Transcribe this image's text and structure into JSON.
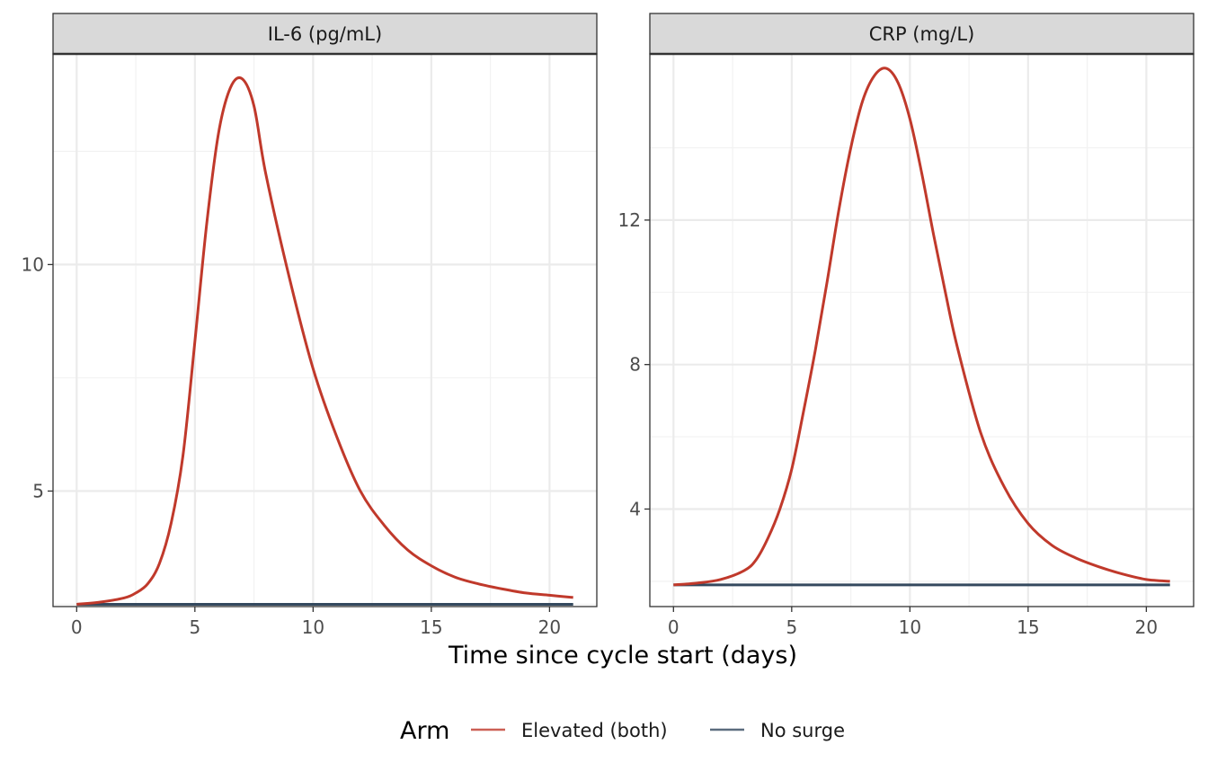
{
  "chart_data": {
    "type": "line",
    "xlabel": "Time since cycle start (days)",
    "legend": {
      "title": "Arm",
      "position": "bottom",
      "entries": [
        {
          "name": "Elevated (both)",
          "color": "#c0392b"
        },
        {
          "name": "No surge",
          "color": "#34495e"
        }
      ]
    },
    "grid": true,
    "panels": [
      {
        "strip": "IL-6 (pg/mL)",
        "xlim": [
          -1,
          22
        ],
        "ylim": [
          2.45,
          14.65
        ],
        "xticks": [
          0,
          5,
          10,
          15,
          20
        ],
        "yticks": [
          5,
          10
        ],
        "series": [
          {
            "name": "Elevated (both)",
            "color": "#c0392b",
            "x": [
              0,
              1,
              2,
              2.5,
              3,
              3.5,
              4,
              4.5,
              5,
              5.5,
              6,
              6.5,
              7,
              7.5,
              8,
              9,
              10,
              11,
              12,
              13,
              14,
              15,
              16,
              17,
              18,
              19,
              20,
              21
            ],
            "y": [
              2.5,
              2.55,
              2.64,
              2.75,
              2.95,
              3.4,
              4.3,
              5.8,
              8.3,
              10.9,
              12.9,
              13.9,
              14.1,
              13.5,
              12.0,
              9.7,
              7.7,
              6.2,
              5.0,
              4.25,
              3.7,
              3.35,
              3.1,
              2.95,
              2.84,
              2.75,
              2.7,
              2.65
            ]
          },
          {
            "name": "No surge",
            "color": "#34495e",
            "x": [
              0,
              21
            ],
            "y": [
              2.5,
              2.5
            ]
          }
        ]
      },
      {
        "strip": "CRP (mg/L)",
        "xlim": [
          -1,
          22
        ],
        "ylim": [
          1.3,
          16.6
        ],
        "xticks": [
          0,
          5,
          10,
          15,
          20
        ],
        "yticks": [
          4,
          8,
          12
        ],
        "series": [
          {
            "name": "Elevated (both)",
            "color": "#c0392b",
            "x": [
              0,
              1,
              2,
              3,
              3.5,
              4,
              4.5,
              5,
              5.5,
              6,
              6.5,
              7,
              7.5,
              8,
              8.5,
              9,
              9.5,
              10,
              10.5,
              11,
              11.5,
              12,
              13,
              14,
              15,
              16,
              17,
              18,
              19,
              20,
              21
            ],
            "y": [
              1.9,
              1.95,
              2.05,
              2.3,
              2.6,
              3.2,
              4.0,
              5.1,
              6.7,
              8.4,
              10.3,
              12.3,
              14.0,
              15.3,
              16.0,
              16.2,
              15.8,
              14.8,
              13.3,
              11.6,
              10.0,
              8.5,
              6.1,
              4.6,
              3.6,
              3.0,
              2.65,
              2.4,
              2.2,
              2.05,
              2.0
            ]
          },
          {
            "name": "No surge",
            "color": "#34495e",
            "x": [
              0,
              21
            ],
            "y": [
              1.9,
              1.9
            ]
          }
        ]
      }
    ]
  }
}
